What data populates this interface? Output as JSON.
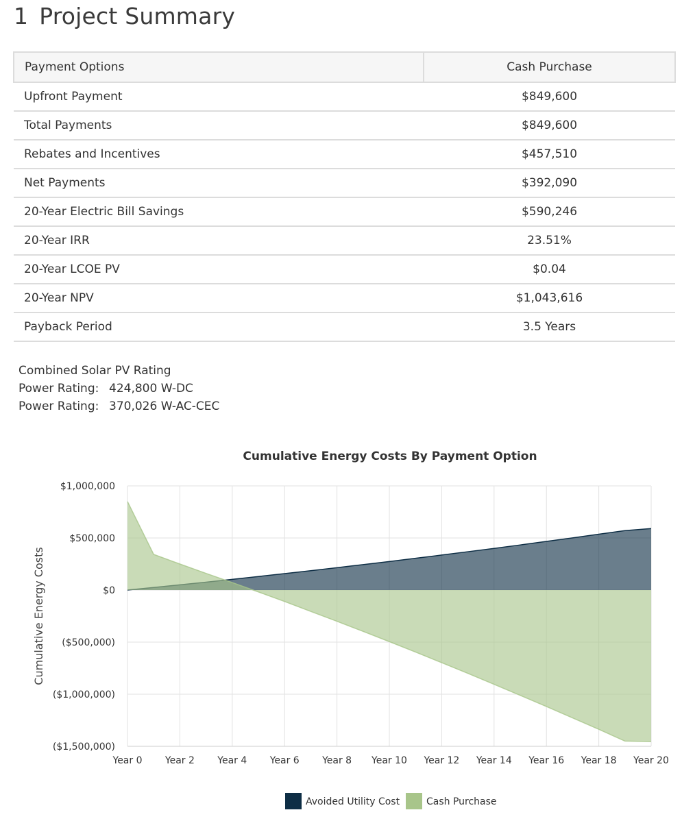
{
  "section": {
    "number": "1",
    "title": "Project Summary"
  },
  "summary_table": {
    "headers": [
      "Payment Options",
      "Cash Purchase"
    ],
    "rows": [
      {
        "label": "Upfront Payment",
        "value": "$849,600"
      },
      {
        "label": "Total Payments",
        "value": "$849,600"
      },
      {
        "label": "Rebates and Incentives",
        "value": "$457,510"
      },
      {
        "label": "Net Payments",
        "value": "$392,090"
      },
      {
        "label": "20-Year Electric Bill Savings",
        "value": "$590,246"
      },
      {
        "label": "20-Year IRR",
        "value": "23.51%"
      },
      {
        "label": "20-Year LCOE PV",
        "value": "$0.04"
      },
      {
        "label": "20-Year NPV",
        "value": "$1,043,616"
      },
      {
        "label": "Payback Period",
        "value": "3.5 Years"
      }
    ]
  },
  "rating": {
    "title": "Combined Solar PV Rating",
    "lines": [
      {
        "label": "Power Rating:",
        "value": "424,800 W-DC"
      },
      {
        "label": "Power Rating:",
        "value": "370,026 W-AC-CEC"
      }
    ]
  },
  "chart_data": {
    "type": "area",
    "title": "Cumulative Energy Costs By Payment Option",
    "xlabel": "",
    "ylabel": "Cumulative Energy Costs",
    "x": [
      0,
      1,
      2,
      3,
      4,
      5,
      6,
      7,
      8,
      9,
      10,
      11,
      12,
      13,
      14,
      15,
      16,
      17,
      18,
      19,
      20
    ],
    "x_tick_labels": [
      "Year 0",
      "Year 2",
      "Year 4",
      "Year 6",
      "Year 8",
      "Year 10",
      "Year 12",
      "Year 14",
      "Year 16",
      "Year 18",
      "Year 20"
    ],
    "y_tick_labels": [
      "$1,000,000",
      "$500,000",
      "$0",
      "($500,000)",
      "($1,000,000)",
      "($1,500,000)"
    ],
    "y_ticks": [
      1000000,
      500000,
      0,
      -500000,
      -1000000,
      -1500000
    ],
    "ylim": [
      -1500000,
      1000000
    ],
    "grid": true,
    "legend_position": "bottom",
    "series": [
      {
        "name": "Avoided Utility Cost",
        "color": "#0e2e45",
        "values": [
          0,
          25000,
          50000,
          76000,
          103000,
          130000,
          158000,
          186000,
          215000,
          244000,
          274000,
          305000,
          336000,
          368000,
          400000,
          433000,
          467000,
          501000,
          536000,
          571000,
          590246
        ]
      },
      {
        "name": "Cash Purchase",
        "color": "#a8c58a",
        "values": [
          849600,
          342000,
          250000,
          160000,
          72000,
          -18000,
          -110000,
          -205000,
          -300000,
          -397000,
          -495000,
          -595000,
          -697000,
          -800000,
          -905000,
          -1011000,
          -1118000,
          -1227000,
          -1337000,
          -1450000,
          -1455000
        ]
      }
    ]
  }
}
